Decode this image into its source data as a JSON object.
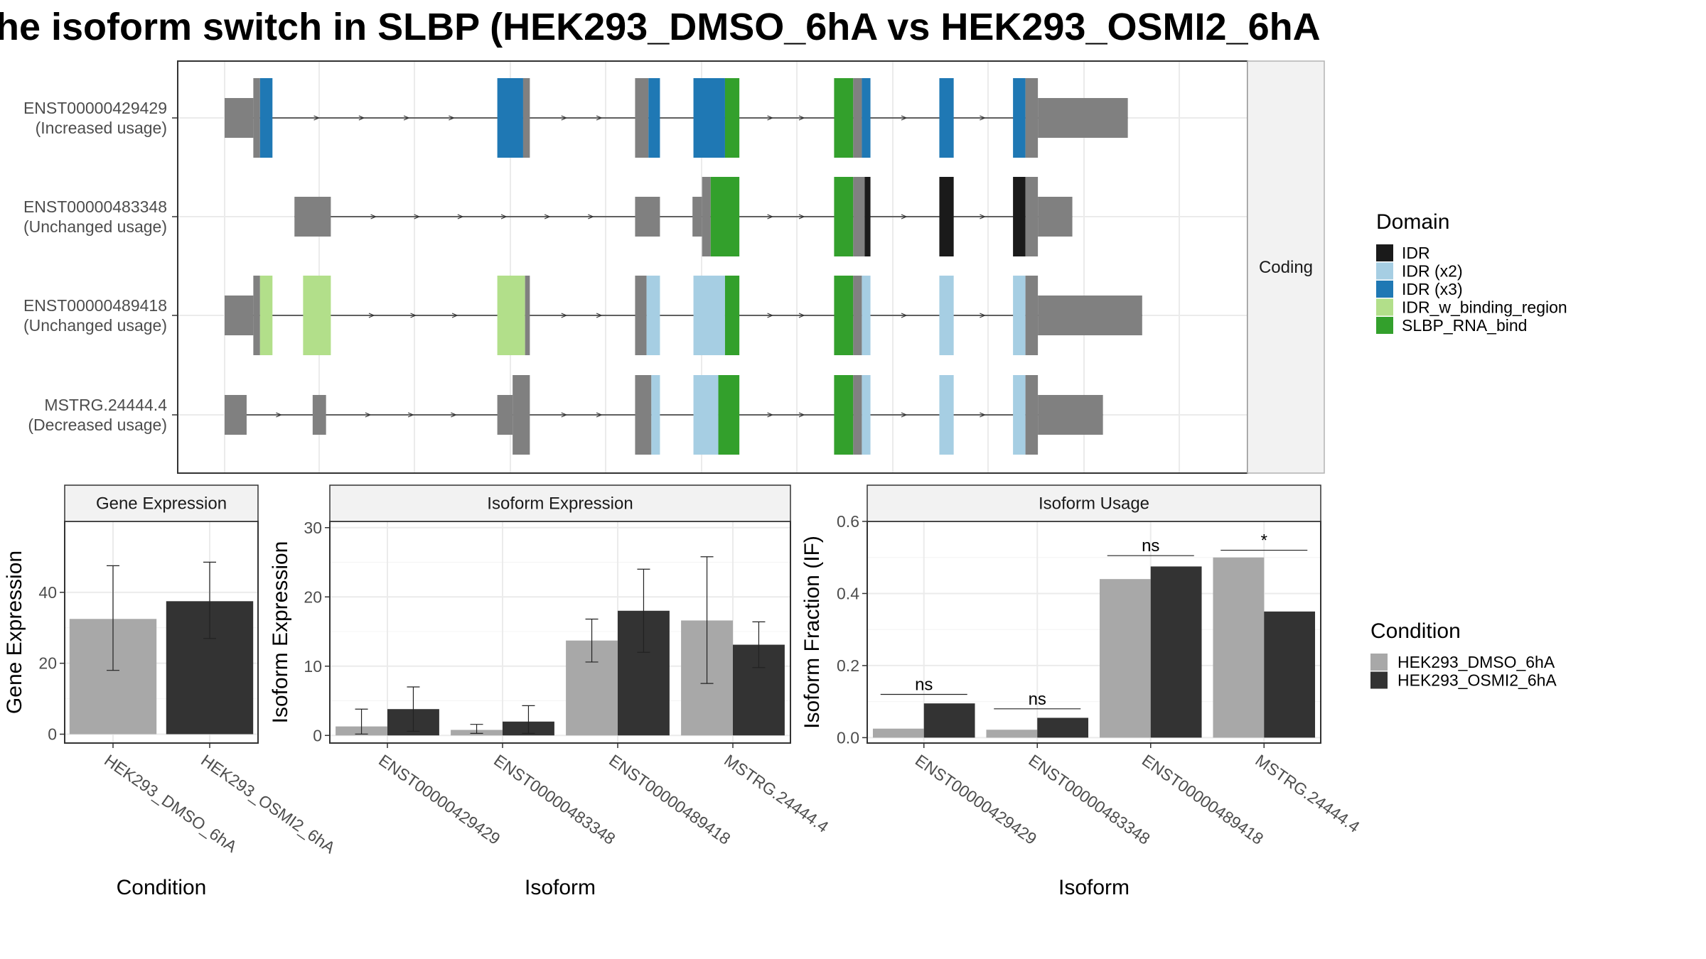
{
  "title": "he isoform switch in SLBP (HEK293_DMSO_6hA vs HEK293_OSMI2_6hA",
  "colors": {
    "IDR": "#1a1a1a",
    "IDR (x2)": "#a6cee3",
    "IDR (x3)": "#1f78b4",
    "IDR_w_binding_region": "#b2df8a",
    "SLBP_RNA_bind": "#33a02c",
    "noncoding": "#808080",
    "dmso": "#a8a8a8",
    "osmi": "#333333"
  },
  "transcript_panel": {
    "strip_label": "Coding",
    "x_range": [
      0,
      100
    ],
    "transcripts": [
      {
        "name": "ENST00000429429",
        "usage": "(Increased usage)",
        "segments": [
          {
            "s": 0,
            "e": 3,
            "h": "thin",
            "d": null
          },
          {
            "s": 3,
            "e": 3.7,
            "h": "thick",
            "d": null
          },
          {
            "s": 3.7,
            "e": 5.0,
            "h": "thick",
            "d": "IDR (x3)"
          },
          {
            "s": 28.5,
            "e": 31.2,
            "h": "thick",
            "d": "IDR (x3)"
          },
          {
            "s": 31.2,
            "e": 31.9,
            "h": "thick",
            "d": null
          },
          {
            "s": 42.9,
            "e": 44.3,
            "h": "thick",
            "d": null
          },
          {
            "s": 44.3,
            "e": 45.5,
            "h": "thick",
            "d": "IDR (x3)"
          },
          {
            "s": 49.0,
            "e": 52.3,
            "h": "thick",
            "d": "IDR (x3)"
          },
          {
            "s": 52.3,
            "e": 53.8,
            "h": "thick",
            "d": "SLBP_RNA_bind"
          },
          {
            "s": 63.7,
            "e": 65.7,
            "h": "thick",
            "d": "SLBP_RNA_bind"
          },
          {
            "s": 65.7,
            "e": 66.6,
            "h": "thick",
            "d": null
          },
          {
            "s": 66.6,
            "e": 67.5,
            "h": "thick",
            "d": "IDR (x3)"
          },
          {
            "s": 74.7,
            "e": 76.2,
            "h": "thick",
            "d": "IDR (x3)"
          },
          {
            "s": 82.4,
            "e": 83.7,
            "h": "thick",
            "d": "IDR (x3)"
          },
          {
            "s": 83.7,
            "e": 85.0,
            "h": "thick",
            "d": null
          },
          {
            "s": 85.0,
            "e": 94.4,
            "h": "thin",
            "d": null
          }
        ]
      },
      {
        "name": "ENST00000483348",
        "usage": "(Unchanged usage)",
        "segments": [
          {
            "s": 7.3,
            "e": 11.1,
            "h": "thin",
            "d": null
          },
          {
            "s": 42.9,
            "e": 45.5,
            "h": "thin",
            "d": null
          },
          {
            "s": 48.9,
            "e": 49.9,
            "h": "thin",
            "d": null
          },
          {
            "s": 49.9,
            "e": 50.8,
            "h": "thick",
            "d": null
          },
          {
            "s": 50.8,
            "e": 53.8,
            "h": "thick",
            "d": "SLBP_RNA_bind"
          },
          {
            "s": 63.7,
            "e": 65.7,
            "h": "thick",
            "d": "SLBP_RNA_bind"
          },
          {
            "s": 65.7,
            "e": 66.9,
            "h": "thick",
            "d": null
          },
          {
            "s": 66.9,
            "e": 67.5,
            "h": "thick",
            "d": "IDR"
          },
          {
            "s": 74.7,
            "e": 76.2,
            "h": "thick",
            "d": "IDR"
          },
          {
            "s": 82.4,
            "e": 83.7,
            "h": "thick",
            "d": "IDR"
          },
          {
            "s": 83.7,
            "e": 85.0,
            "h": "thick",
            "d": null
          },
          {
            "s": 85.0,
            "e": 88.6,
            "h": "thin",
            "d": null
          }
        ]
      },
      {
        "name": "ENST00000489418",
        "usage": "(Unchanged usage)",
        "segments": [
          {
            "s": 0,
            "e": 3,
            "h": "thin",
            "d": null
          },
          {
            "s": 3,
            "e": 3.7,
            "h": "thick",
            "d": null
          },
          {
            "s": 3.7,
            "e": 5.0,
            "h": "thick",
            "d": "IDR_w_binding_region"
          },
          {
            "s": 8.2,
            "e": 11.1,
            "h": "thick",
            "d": "IDR_w_binding_region"
          },
          {
            "s": 28.5,
            "e": 31.4,
            "h": "thick",
            "d": "IDR_w_binding_region"
          },
          {
            "s": 31.4,
            "e": 31.9,
            "h": "thick",
            "d": null
          },
          {
            "s": 42.9,
            "e": 44.1,
            "h": "thick",
            "d": null
          },
          {
            "s": 44.1,
            "e": 45.5,
            "h": "thick",
            "d": "IDR (x2)"
          },
          {
            "s": 49.0,
            "e": 52.3,
            "h": "thick",
            "d": "IDR (x2)"
          },
          {
            "s": 52.3,
            "e": 53.8,
            "h": "thick",
            "d": "SLBP_RNA_bind"
          },
          {
            "s": 63.7,
            "e": 65.7,
            "h": "thick",
            "d": "SLBP_RNA_bind"
          },
          {
            "s": 65.7,
            "e": 66.6,
            "h": "thick",
            "d": null
          },
          {
            "s": 66.6,
            "e": 67.5,
            "h": "thick",
            "d": "IDR (x2)"
          },
          {
            "s": 74.7,
            "e": 76.2,
            "h": "thick",
            "d": "IDR (x2)"
          },
          {
            "s": 82.4,
            "e": 83.7,
            "h": "thick",
            "d": "IDR (x2)"
          },
          {
            "s": 83.7,
            "e": 85.0,
            "h": "thick",
            "d": null
          },
          {
            "s": 85.0,
            "e": 95.9,
            "h": "thin",
            "d": null
          }
        ]
      },
      {
        "name": "MSTRG.24444.4",
        "usage": "(Decreased usage)",
        "segments": [
          {
            "s": 0,
            "e": 2.3,
            "h": "thin",
            "d": null
          },
          {
            "s": 9.2,
            "e": 10.6,
            "h": "thin",
            "d": null
          },
          {
            "s": 28.5,
            "e": 30.1,
            "h": "thin",
            "d": null
          },
          {
            "s": 30.1,
            "e": 31.9,
            "h": "thick",
            "d": null
          },
          {
            "s": 42.9,
            "e": 44.6,
            "h": "thick",
            "d": null
          },
          {
            "s": 44.6,
            "e": 45.5,
            "h": "thick",
            "d": "IDR (x2)"
          },
          {
            "s": 49.0,
            "e": 51.6,
            "h": "thick",
            "d": "IDR (x2)"
          },
          {
            "s": 51.6,
            "e": 53.8,
            "h": "thick",
            "d": "SLBP_RNA_bind"
          },
          {
            "s": 63.7,
            "e": 65.7,
            "h": "thick",
            "d": "SLBP_RNA_bind"
          },
          {
            "s": 65.7,
            "e": 66.6,
            "h": "thick",
            "d": null
          },
          {
            "s": 66.6,
            "e": 67.5,
            "h": "thick",
            "d": "IDR (x2)"
          },
          {
            "s": 74.7,
            "e": 76.2,
            "h": "thick",
            "d": "IDR (x2)"
          },
          {
            "s": 82.4,
            "e": 83.7,
            "h": "thick",
            "d": "IDR (x2)"
          },
          {
            "s": 83.7,
            "e": 85.0,
            "h": "thick",
            "d": null
          },
          {
            "s": 85.0,
            "e": 91.8,
            "h": "thin",
            "d": null
          }
        ]
      }
    ]
  },
  "domain_legend": {
    "title": "Domain",
    "items": [
      "IDR",
      "IDR (x2)",
      "IDR (x3)",
      "IDR_w_binding_region",
      "SLBP_RNA_bind"
    ]
  },
  "condition_legend": {
    "title": "Condition",
    "items": [
      "HEK293_DMSO_6hA",
      "HEK293_OSMI2_6hA"
    ]
  },
  "chart_data": [
    {
      "type": "bar",
      "title": "Gene Expression",
      "xlabel": "Condition",
      "ylabel": "Gene Expression",
      "ylim": [
        -2.5,
        60
      ],
      "yticks": [
        0,
        20,
        40
      ],
      "categories": [
        "HEK293_DMSO_6hA",
        "HEK293_OSMI2_6hA"
      ],
      "values": [
        32.5,
        37.5
      ],
      "error_low": [
        18,
        27
      ],
      "error_high": [
        47.5,
        48.5
      ]
    },
    {
      "type": "bar",
      "title": "Isoform Expression",
      "xlabel": "Isoform",
      "ylabel": "Isoform Expression",
      "ylim": [
        -1.1,
        30.9
      ],
      "yticks": [
        0,
        10,
        20,
        30
      ],
      "categories": [
        "ENST00000429429",
        "ENST00000483348",
        "ENST00000489418",
        "MSTRG.24444.4"
      ],
      "series": [
        {
          "name": "HEK293_DMSO_6hA",
          "values": [
            1.3,
            0.8,
            13.7,
            16.6
          ],
          "error_low": [
            0.2,
            0.3,
            10.6,
            7.5
          ],
          "error_high": [
            3.8,
            1.6,
            16.8,
            25.8
          ]
        },
        {
          "name": "HEK293_OSMI2_6hA",
          "values": [
            3.8,
            2.0,
            18.0,
            13.1
          ],
          "error_low": [
            0.6,
            0.3,
            12.0,
            9.8
          ],
          "error_high": [
            7.0,
            4.3,
            24.0,
            16.4
          ]
        }
      ]
    },
    {
      "type": "bar",
      "title": "Isoform Usage",
      "xlabel": "Isoform",
      "ylabel": "Isoform Fraction (IF)",
      "ylim": [
        -0.015,
        0.6
      ],
      "yticks": [
        0.0,
        0.2,
        0.4,
        0.6
      ],
      "ytick_labels": [
        "0.0",
        "0.2",
        "0.4",
        "0.6"
      ],
      "categories": [
        "ENST00000429429",
        "ENST00000483348",
        "ENST00000489418",
        "MSTRG.24444.4"
      ],
      "series": [
        {
          "name": "HEK293_DMSO_6hA",
          "values": [
            0.025,
            0.022,
            0.44,
            0.5
          ]
        },
        {
          "name": "HEK293_OSMI2_6hA",
          "values": [
            0.095,
            0.055,
            0.475,
            0.35
          ]
        }
      ],
      "significance": [
        {
          "label": "ns",
          "y": 0.12
        },
        {
          "label": "ns",
          "y": 0.08
        },
        {
          "label": "ns",
          "y": 0.505
        },
        {
          "label": "*",
          "y": 0.52
        }
      ]
    }
  ]
}
